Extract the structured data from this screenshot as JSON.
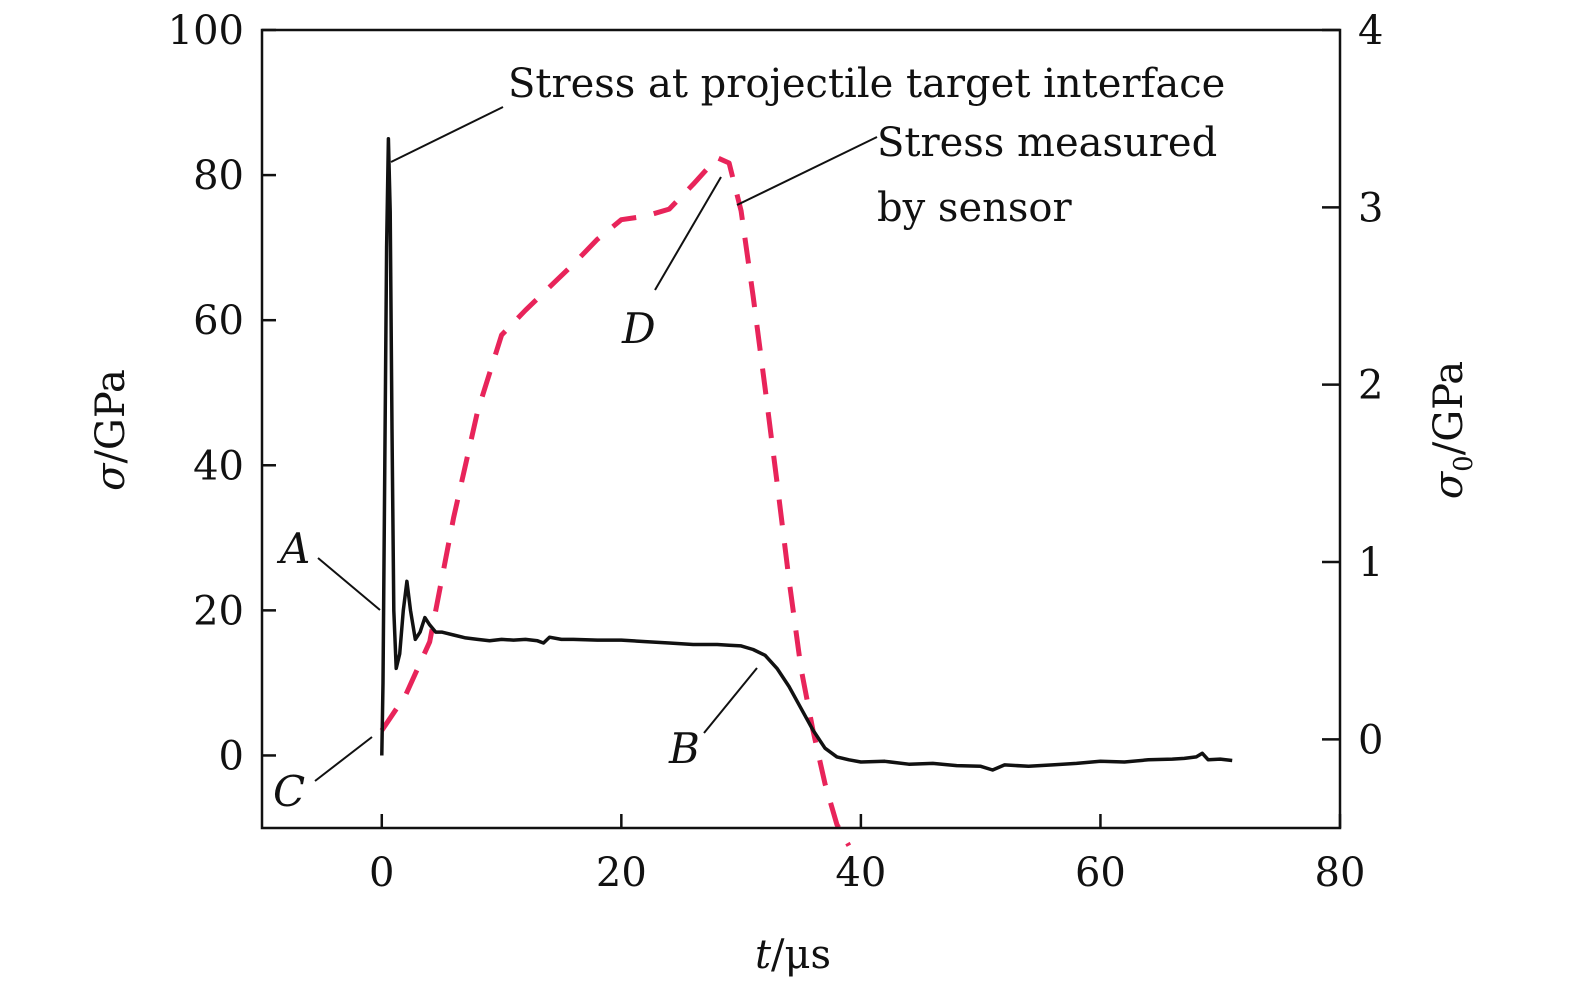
{
  "chart_data": {
    "type": "line",
    "xlabel": "t/μs",
    "ylabel_left": "σ/GPa",
    "ylabel_right": "σ0/GPa",
    "xlim": [
      -10,
      80
    ],
    "ylim_left": [
      -10,
      100
    ],
    "ylim_right": [
      -0.5,
      4
    ],
    "x_ticks": [
      0,
      20,
      40,
      60,
      80
    ],
    "y_ticks_left": [
      0,
      20,
      40,
      60,
      80,
      100
    ],
    "y_ticks_right": [
      0,
      1,
      2,
      3,
      4
    ],
    "grid": false,
    "series": [
      {
        "name": "Stress at projectile target interface",
        "axis": "left",
        "color": "#111111",
        "style": "solid",
        "x": [
          0,
          0.1,
          0.25,
          0.4,
          0.55,
          0.7,
          0.85,
          1.0,
          1.2,
          1.5,
          1.8,
          2.1,
          2.4,
          2.8,
          3.2,
          3.6,
          4.0,
          4.5,
          5,
          6,
          7,
          8,
          9,
          10,
          11,
          12,
          13,
          13.5,
          14,
          15,
          16,
          18,
          20,
          22,
          24,
          26,
          28,
          29,
          30,
          31,
          32,
          33,
          34,
          35,
          36,
          37,
          38,
          39,
          40,
          42,
          44,
          46,
          48,
          50,
          51,
          52,
          54,
          56,
          58,
          60,
          62,
          64,
          66,
          67,
          68,
          68.5,
          69,
          70,
          71
        ],
        "y": [
          0,
          10,
          40,
          70,
          85,
          75,
          45,
          20,
          12,
          14,
          20,
          24,
          20,
          16,
          17,
          19,
          18,
          17,
          17,
          16.6,
          16.2,
          16,
          15.8,
          16,
          15.9,
          16,
          15.8,
          15.5,
          16.3,
          16,
          16,
          15.9,
          15.9,
          15.7,
          15.5,
          15.3,
          15.3,
          15.2,
          15.1,
          14.6,
          13.8,
          12,
          9.5,
          6.5,
          3.5,
          1,
          -0.2,
          -0.6,
          -0.9,
          -0.8,
          -1.2,
          -1.1,
          -1.4,
          -1.5,
          -2,
          -1.3,
          -1.5,
          -1.3,
          -1.1,
          -0.8,
          -0.9,
          -0.6,
          -0.5,
          -0.4,
          -0.2,
          0.3,
          -0.6,
          -0.5,
          -0.7
        ]
      },
      {
        "name": "Stress measured by sensor",
        "axis": "right",
        "color": "#e8245a",
        "style": "dashed",
        "x": [
          0,
          2,
          4,
          6,
          8,
          10,
          12,
          14,
          16,
          18,
          20,
          22,
          24,
          26,
          28,
          29,
          30,
          31,
          32,
          33,
          34,
          35,
          36,
          37,
          38,
          39
        ],
        "y": [
          0.05,
          0.25,
          0.55,
          1.25,
          1.85,
          2.28,
          2.42,
          2.55,
          2.68,
          2.82,
          2.93,
          2.95,
          2.99,
          3.13,
          3.28,
          3.25,
          2.98,
          2.5,
          1.98,
          1.45,
          0.9,
          0.4,
          0.05,
          -0.25,
          -0.48,
          -0.6
        ]
      }
    ],
    "annotations": {
      "interface_label": "Stress at projectile target interface",
      "sensor_label_line1": "Stress measured",
      "sensor_label_line2": "by sensor",
      "point_A": "A",
      "point_B": "B",
      "point_C": "C",
      "point_D": "D"
    }
  }
}
